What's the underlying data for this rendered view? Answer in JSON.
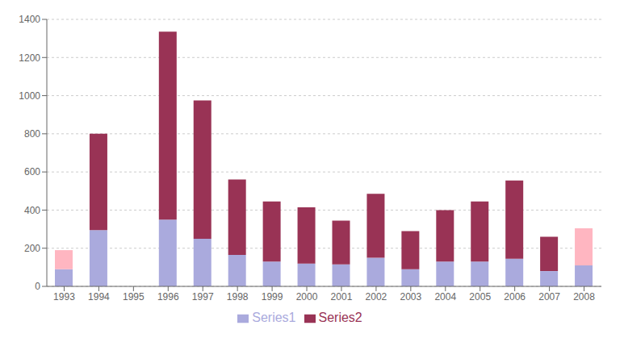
{
  "chart_data": {
    "type": "bar",
    "stacked": true,
    "categories": [
      "1993",
      "1994",
      "1995",
      "1996",
      "1997",
      "1998",
      "1999",
      "2000",
      "2001",
      "2002",
      "2003",
      "2004",
      "2005",
      "2006",
      "2007",
      "2008"
    ],
    "series": [
      {
        "name": "Series1",
        "color": "#aaaadd",
        "colors": [
          "#aaaadd",
          "#aaaadd",
          "#aaaadd",
          "#aaaadd",
          "#aaaadd",
          "#aaaadd",
          "#aaaadd",
          "#aaaadd",
          "#aaaadd",
          "#aaaadd",
          "#aaaadd",
          "#aaaadd",
          "#aaaadd",
          "#aaaadd",
          "#aaaadd",
          "#aaaadd"
        ],
        "values": [
          90,
          295,
          0,
          350,
          250,
          165,
          130,
          120,
          115,
          150,
          90,
          130,
          130,
          145,
          80,
          110
        ]
      },
      {
        "name": "Series2",
        "color": "#993355",
        "colors": [
          "#ffb6c1",
          "#993355",
          "#993355",
          "#993355",
          "#993355",
          "#993355",
          "#993355",
          "#993355",
          "#993355",
          "#993355",
          "#993355",
          "#993355",
          "#993355",
          "#993355",
          "#993355",
          "#ffb6c1"
        ],
        "values": [
          100,
          505,
          0,
          985,
          725,
          395,
          315,
          295,
          230,
          335,
          200,
          270,
          315,
          410,
          180,
          195
        ]
      }
    ],
    "ylim": [
      0,
      1400
    ],
    "yticks": [
      0,
      200,
      400,
      600,
      800,
      1000,
      1200,
      1400
    ],
    "grid": true,
    "legend": "bottom"
  }
}
